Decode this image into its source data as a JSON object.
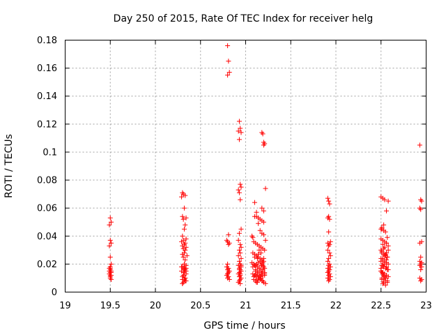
{
  "chart_data": {
    "type": "scatter",
    "title": "Day 250 of 2015, Rate Of TEC Index for receiver helg",
    "xlabel": "GPS time / hours",
    "ylabel": "ROTI / TECUs",
    "xlim": [
      19,
      23
    ],
    "ylim": [
      0,
      0.18
    ],
    "x_ticks": [
      19,
      19.5,
      20,
      20.5,
      21,
      21.5,
      22,
      22.5,
      23
    ],
    "x_tick_labels": [
      "19",
      "19.5",
      "20",
      "20.5",
      "21",
      "21.5",
      "22",
      "22.5",
      "23"
    ],
    "y_ticks": [
      0,
      0.02,
      0.04,
      0.06,
      0.08,
      0.1,
      0.12,
      0.14,
      0.16,
      0.18
    ],
    "y_tick_labels": [
      "0",
      "0.02",
      "0.04",
      "0.06",
      "0.08",
      "0.1",
      "0.12",
      "0.14",
      "0.16",
      "0.18"
    ],
    "grid": true,
    "marker": "plus",
    "marker_color": "#ff0000",
    "series": [
      {
        "name": "ROTI",
        "x": [
          19.5,
          19.51,
          19.49,
          19.5,
          19.51,
          19.49,
          19.5,
          19.51,
          19.5,
          19.49,
          19.5,
          19.51,
          19.5,
          19.49,
          19.51,
          19.5,
          19.5,
          19.51,
          19.49,
          19.5,
          19.51,
          19.5,
          20.3,
          20.31,
          20.33,
          20.29,
          20.32,
          20.3,
          20.34,
          20.31,
          20.33,
          20.32,
          20.3,
          20.34,
          20.31,
          20.29,
          20.33,
          20.32,
          20.3,
          20.34,
          20.31,
          20.33,
          20.32,
          20.3,
          20.35,
          20.31,
          20.33,
          20.32,
          20.34,
          20.3,
          20.31,
          20.33,
          20.29,
          20.32,
          20.34,
          20.31,
          20.3,
          20.33,
          20.32,
          20.34,
          20.31,
          20.3,
          20.33,
          20.29,
          20.32,
          20.34,
          20.31,
          20.33,
          20.3,
          20.32,
          20.34,
          20.31,
          20.33,
          20.3,
          20.8,
          20.81,
          20.82,
          20.8,
          20.81,
          20.79,
          20.8,
          20.82,
          20.81,
          20.8,
          20.79,
          20.81,
          20.8,
          20.82,
          20.81,
          20.8,
          20.79,
          20.81,
          20.8,
          20.82,
          20.81,
          20.8,
          20.93,
          20.94,
          20.92,
          20.95,
          20.93,
          20.94,
          20.95,
          20.92,
          20.93,
          20.94,
          20.95,
          20.93,
          20.92,
          20.94,
          20.95,
          20.93,
          20.94,
          20.92,
          20.95,
          20.93,
          20.94,
          20.92,
          20.95,
          20.93,
          20.94,
          20.95,
          20.93,
          20.92,
          20.94,
          20.93,
          20.95,
          20.94,
          20.93,
          20.92,
          20.94,
          20.95,
          20.93,
          20.94,
          21.07,
          21.08,
          21.1,
          21.12,
          21.14,
          21.16,
          21.18,
          21.2,
          21.22,
          21.09,
          21.11,
          21.13,
          21.15,
          21.17,
          21.19,
          21.21,
          21.08,
          21.1,
          21.12,
          21.14,
          21.16,
          21.18,
          21.2,
          21.07,
          21.09,
          21.11,
          21.13,
          21.15,
          21.17,
          21.19,
          21.21,
          21.08,
          21.1,
          21.12,
          21.14,
          21.16,
          21.18,
          21.2,
          21.22,
          21.09,
          21.11,
          21.13,
          21.15,
          21.17,
          21.19,
          21.21,
          21.08,
          21.1,
          21.12,
          21.14,
          21.16,
          21.18,
          21.2,
          21.09,
          21.11,
          21.13,
          21.15,
          21.17,
          21.19,
          21.21,
          21.1,
          21.12,
          21.14,
          21.16,
          21.18,
          21.2,
          21.11,
          21.13,
          21.15,
          21.17,
          21.19,
          21.12,
          21.14,
          21.16,
          21.18,
          21.13,
          21.15,
          21.17,
          21.19,
          21.18,
          21.19,
          21.2,
          21.21,
          21.2,
          21.22,
          21.18,
          21.2,
          21.1,
          21.12,
          21.14,
          21.16,
          21.18,
          21.2,
          21.15,
          21.17,
          21.13,
          21.19,
          21.11,
          21.21,
          21.91,
          21.92,
          21.93,
          21.92,
          21.91,
          21.93,
          21.92,
          21.94,
          21.91,
          21.93,
          21.92,
          21.91,
          21.93,
          21.94,
          21.92,
          21.91,
          21.93,
          21.92,
          21.94,
          21.91,
          21.93,
          21.92,
          21.91,
          21.93,
          21.92,
          21.94,
          21.91,
          21.93,
          21.92,
          21.91,
          22.5,
          22.52,
          22.54,
          22.56,
          22.58,
          22.51,
          22.53,
          22.55,
          22.57,
          22.5,
          22.52,
          22.54,
          22.56,
          22.58,
          22.51,
          22.53,
          22.55,
          22.57,
          22.5,
          22.52,
          22.54,
          22.56,
          22.58,
          22.51,
          22.53,
          22.55,
          22.57,
          22.5,
          22.52,
          22.54,
          22.56,
          22.58,
          22.51,
          22.53,
          22.55,
          22.57,
          22.52,
          22.54,
          22.56,
          22.58,
          22.51,
          22.53,
          22.55,
          22.57,
          22.5,
          22.52,
          22.54,
          22.56,
          22.5,
          22.52,
          22.54,
          22.51,
          22.53,
          22.55,
          22.5,
          22.52,
          22.54,
          22.56,
          22.57,
          22.55,
          22.5,
          22.51,
          22.53,
          22.52,
          22.54,
          22.5,
          22.51,
          22.53,
          22.58,
          22.56,
          22.93,
          22.94,
          22.95,
          22.93,
          22.94,
          22.95,
          22.93,
          22.94,
          22.93,
          22.95,
          22.94,
          22.93,
          22.95,
          22.94,
          22.93,
          22.95,
          22.94
        ],
        "y": [
          0.053,
          0.05,
          0.048,
          0.037,
          0.035,
          0.033,
          0.025,
          0.02,
          0.018,
          0.017,
          0.016,
          0.015,
          0.014,
          0.013,
          0.012,
          0.011,
          0.01,
          0.009,
          0.015,
          0.017,
          0.014,
          0.012,
          0.071,
          0.07,
          0.069,
          0.068,
          0.06,
          0.054,
          0.053,
          0.052,
          0.048,
          0.045,
          0.04,
          0.038,
          0.037,
          0.036,
          0.035,
          0.034,
          0.033,
          0.032,
          0.031,
          0.03,
          0.028,
          0.027,
          0.026,
          0.025,
          0.023,
          0.02,
          0.019,
          0.018,
          0.017,
          0.016,
          0.015,
          0.014,
          0.013,
          0.012,
          0.011,
          0.01,
          0.009,
          0.008,
          0.007,
          0.006,
          0.017,
          0.018,
          0.016,
          0.015,
          0.012,
          0.01,
          0.009,
          0.02,
          0.017,
          0.014,
          0.008,
          0.006,
          0.176,
          0.165,
          0.157,
          0.155,
          0.041,
          0.037,
          0.036,
          0.035,
          0.034,
          0.02,
          0.018,
          0.017,
          0.016,
          0.015,
          0.014,
          0.013,
          0.012,
          0.011,
          0.01,
          0.009,
          0.015,
          0.013,
          0.122,
          0.117,
          0.115,
          0.114,
          0.109,
          0.077,
          0.075,
          0.073,
          0.071,
          0.066,
          0.045,
          0.042,
          0.037,
          0.034,
          0.032,
          0.03,
          0.028,
          0.026,
          0.024,
          0.022,
          0.02,
          0.019,
          0.018,
          0.017,
          0.016,
          0.015,
          0.014,
          0.013,
          0.012,
          0.011,
          0.01,
          0.009,
          0.008,
          0.007,
          0.006,
          0.019,
          0.016,
          0.013,
          0.04,
          0.039,
          0.054,
          0.054,
          0.053,
          0.052,
          0.051,
          0.05,
          0.037,
          0.036,
          0.035,
          0.034,
          0.033,
          0.032,
          0.031,
          0.03,
          0.028,
          0.027,
          0.026,
          0.025,
          0.024,
          0.023,
          0.022,
          0.021,
          0.02,
          0.019,
          0.018,
          0.017,
          0.016,
          0.015,
          0.014,
          0.013,
          0.012,
          0.011,
          0.01,
          0.009,
          0.008,
          0.007,
          0.006,
          0.011,
          0.012,
          0.013,
          0.014,
          0.015,
          0.016,
          0.017,
          0.018,
          0.019,
          0.02,
          0.021,
          0.022,
          0.023,
          0.024,
          0.009,
          0.008,
          0.007,
          0.01,
          0.011,
          0.012,
          0.013,
          0.025,
          0.026,
          0.027,
          0.022,
          0.02,
          0.018,
          0.016,
          0.014,
          0.012,
          0.01,
          0.008,
          0.007,
          0.009,
          0.011,
          0.013,
          0.015,
          0.017,
          0.019,
          0.021,
          0.114,
          0.113,
          0.107,
          0.106,
          0.105,
          0.074,
          0.06,
          0.058,
          0.064,
          0.057,
          0.049,
          0.044,
          0.042,
          0.041,
          0.03,
          0.028,
          0.024,
          0.019,
          0.015,
          0.012,
          0.067,
          0.065,
          0.063,
          0.054,
          0.053,
          0.052,
          0.043,
          0.036,
          0.035,
          0.034,
          0.033,
          0.03,
          0.028,
          0.026,
          0.024,
          0.022,
          0.02,
          0.019,
          0.018,
          0.017,
          0.016,
          0.015,
          0.014,
          0.013,
          0.012,
          0.011,
          0.01,
          0.009,
          0.008,
          0.014,
          0.068,
          0.067,
          0.066,
          0.058,
          0.065,
          0.045,
          0.044,
          0.043,
          0.039,
          0.038,
          0.037,
          0.036,
          0.035,
          0.03,
          0.028,
          0.027,
          0.026,
          0.025,
          0.024,
          0.023,
          0.022,
          0.021,
          0.02,
          0.019,
          0.018,
          0.017,
          0.016,
          0.015,
          0.014,
          0.013,
          0.012,
          0.011,
          0.01,
          0.009,
          0.008,
          0.007,
          0.006,
          0.02,
          0.018,
          0.016,
          0.014,
          0.012,
          0.01,
          0.008,
          0.022,
          0.024,
          0.026,
          0.028,
          0.015,
          0.013,
          0.011,
          0.009,
          0.007,
          0.005,
          0.017,
          0.019,
          0.021,
          0.023,
          0.025,
          0.027,
          0.045,
          0.046,
          0.048,
          0.034,
          0.032,
          0.03,
          0.029,
          0.031,
          0.033,
          0.035,
          0.105,
          0.066,
          0.065,
          0.06,
          0.059,
          0.036,
          0.035,
          0.025,
          0.022,
          0.021,
          0.02,
          0.019,
          0.018,
          0.016,
          0.01,
          0.009,
          0.008
        ]
      }
    ]
  }
}
